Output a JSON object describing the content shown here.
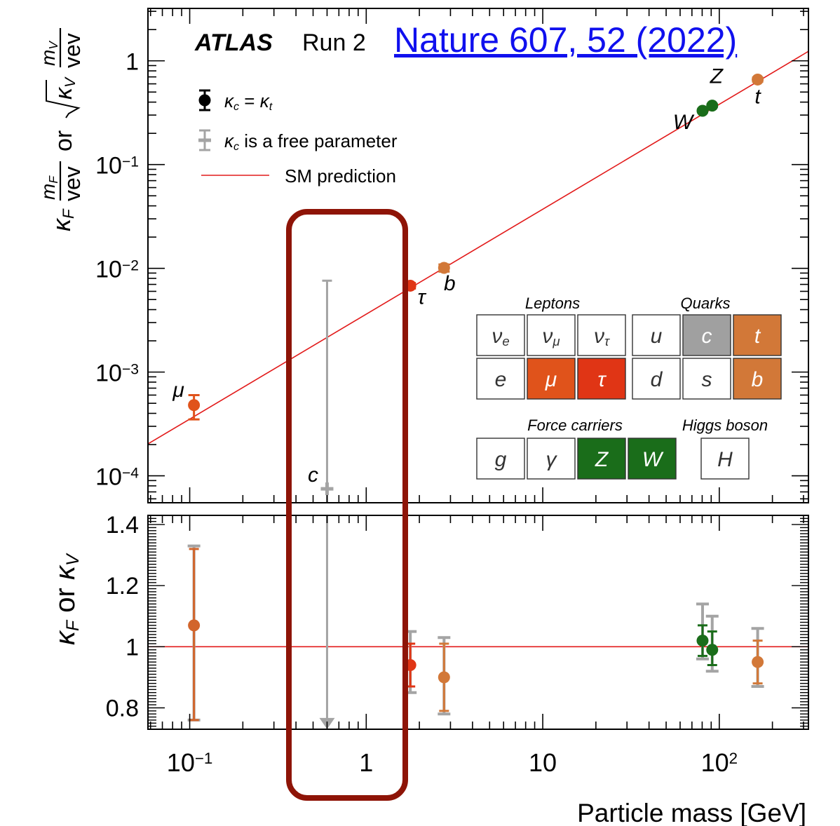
{
  "reference_link": "Nature 607, 52 (2022)",
  "chart_data": {
    "type": "scatter",
    "experiment": "ATLAS",
    "run_label": "Run 2",
    "xlabel": "Particle mass [GeV]",
    "x_scale": "log",
    "xlim": [
      0.058,
      320
    ],
    "x_ticks": [
      {
        "value": 0.1,
        "label": "10",
        "exp": "−1"
      },
      {
        "value": 1,
        "label": "1",
        "exp": ""
      },
      {
        "value": 10,
        "label": "10",
        "exp": ""
      },
      {
        "value": 100,
        "label": "10",
        "exp": "2"
      }
    ],
    "top_panel": {
      "ylabel": {
        "prefix": "κ",
        "sub_f": "F",
        "frac1_num": "m",
        "frac1_num_sub": "F",
        "frac1_den": "vev",
        "or": "or",
        "sqrt_k": "κ",
        "sub_v": "V",
        "frac2_num": "m",
        "frac2_num_sub": "V",
        "frac2_den": "vev"
      },
      "y_scale": "log",
      "ylim": [
        5.5e-05,
        3.2
      ],
      "y_ticks": [
        {
          "value": 0.0001,
          "label": "10",
          "exp": "−4"
        },
        {
          "value": 0.001,
          "label": "10",
          "exp": "−3"
        },
        {
          "value": 0.01,
          "label": "10",
          "exp": "−2"
        },
        {
          "value": 0.1,
          "label": "10",
          "exp": "−1"
        },
        {
          "value": 1,
          "label": "1",
          "exp": ""
        }
      ],
      "points": [
        {
          "particle": "μ",
          "mass": 0.1057,
          "value": 0.00048,
          "err_low": 0.00035,
          "err_high": 0.0006,
          "color": "#e0531b"
        },
        {
          "particle": "τ",
          "mass": 1.777,
          "value": 0.0068,
          "err_low": 0.0064,
          "err_high": 0.0072,
          "color": "#e03515"
        },
        {
          "particle": "b",
          "mass": 2.76,
          "value": 0.0101,
          "err_low": 0.0093,
          "err_high": 0.0109,
          "color": "#d27838"
        },
        {
          "particle": "W",
          "mass": 80.4,
          "value": 0.33,
          "err_low": 0.32,
          "err_high": 0.34,
          "color": "#1a6d1a"
        },
        {
          "particle": "Z",
          "mass": 91.2,
          "value": 0.37,
          "err_low": 0.36,
          "err_high": 0.38,
          "color": "#1a6d1a"
        },
        {
          "particle": "t",
          "mass": 165,
          "value": 0.66,
          "err_low": 0.63,
          "err_high": 0.69,
          "color": "#d27838"
        }
      ],
      "charm_point": {
        "particle": "c",
        "mass": 0.6,
        "value": 7.5e-05,
        "err_high": 0.0076,
        "color": "#a4a4a4"
      },
      "sm_line": {
        "x": [
          0.058,
          320
        ],
        "y": [
          0.000203,
          1.235
        ],
        "color": "#e21a1a"
      }
    },
    "bottom_panel": {
      "ylabel": {
        "k1": "κ",
        "s1": "F",
        "or": "or",
        "k2": "κ",
        "s2": "V"
      },
      "ylim": [
        0.73,
        1.43
      ],
      "y_ticks": [
        0.8,
        1.0,
        1.2,
        1.4
      ],
      "y_tick_labels": [
        "0.8",
        "1",
        "1.2",
        "1.4"
      ],
      "points": [
        {
          "particle": "μ",
          "mass": 0.1057,
          "value": 1.07,
          "err_low": 0.76,
          "err_high": 1.32,
          "gray_low": 0.76,
          "gray_high": 1.33,
          "color": "#d2652c"
        },
        {
          "particle": "τ",
          "mass": 1.777,
          "value": 0.94,
          "err_low": 0.87,
          "err_high": 1.01,
          "gray_low": 0.85,
          "gray_high": 1.05,
          "color": "#e03515"
        },
        {
          "particle": "b",
          "mass": 2.76,
          "value": 0.9,
          "err_low": 0.79,
          "err_high": 1.01,
          "gray_low": 0.78,
          "gray_high": 1.03,
          "color": "#d27838"
        },
        {
          "particle": "W",
          "mass": 80.4,
          "value": 1.02,
          "err_low": 0.97,
          "err_high": 1.07,
          "gray_low": 0.96,
          "gray_high": 1.14,
          "color": "#1a6d1a"
        },
        {
          "particle": "Z",
          "mass": 91.2,
          "value": 0.99,
          "err_low": 0.94,
          "err_high": 1.05,
          "gray_low": 0.92,
          "gray_high": 1.1,
          "color": "#1a6d1a"
        },
        {
          "particle": "t",
          "mass": 165,
          "value": 0.95,
          "err_low": 0.88,
          "err_high": 1.02,
          "gray_low": 0.87,
          "gray_high": 1.06,
          "color": "#d27838"
        }
      ],
      "charm_limit": {
        "particle": "c",
        "mass": 0.6,
        "upper_edge": "off-scale",
        "lower": 0.735,
        "color": "#a4a4a4"
      },
      "sm_value": 1.0
    },
    "legend": {
      "placement": "top-left",
      "entries": [
        {
          "label_k": "κ",
          "label_sub": "c",
          "label_rest": " = ",
          "label_k2": "κ",
          "label_sub2": "t",
          "color": "#000000"
        },
        {
          "label_k": "κ",
          "label_sub": "c",
          "label_rest": " is a free parameter",
          "color": "#a4a4a4"
        },
        {
          "label": "SM prediction",
          "color": "#e21a1a"
        }
      ]
    },
    "particle_table": {
      "headers": {
        "leptons": "Leptons",
        "quarks": "Quarks",
        "force": "Force carriers",
        "higgs": "Higgs boson"
      },
      "leptons": [
        {
          "main": "ν",
          "sub": "e",
          "fill": "#ffffff",
          "text": "#333333"
        },
        {
          "main": "ν",
          "sub": "μ",
          "fill": "#ffffff",
          "text": "#333333"
        },
        {
          "main": "ν",
          "sub": "τ",
          "fill": "#ffffff",
          "text": "#333333"
        },
        {
          "main": "e",
          "sub": "",
          "fill": "#ffffff",
          "text": "#333333"
        },
        {
          "main": "μ",
          "sub": "",
          "fill": "#e0531b",
          "text": "#ffffff"
        },
        {
          "main": "τ",
          "sub": "",
          "fill": "#e03515",
          "text": "#ffffff"
        }
      ],
      "quarks": [
        {
          "main": "u",
          "sub": "",
          "fill": "#ffffff",
          "text": "#333333"
        },
        {
          "main": "c",
          "sub": "",
          "fill": "#a0a0a0",
          "text": "#ffffff"
        },
        {
          "main": "t",
          "sub": "",
          "fill": "#d27838",
          "text": "#ffffff"
        },
        {
          "main": "d",
          "sub": "",
          "fill": "#ffffff",
          "text": "#333333"
        },
        {
          "main": "s",
          "sub": "",
          "fill": "#ffffff",
          "text": "#333333"
        },
        {
          "main": "b",
          "sub": "",
          "fill": "#d27838",
          "text": "#ffffff"
        }
      ],
      "force": [
        {
          "main": "g",
          "sub": "",
          "fill": "#ffffff",
          "text": "#333333"
        },
        {
          "main": "γ",
          "sub": "",
          "fill": "#ffffff",
          "text": "#333333"
        },
        {
          "main": "Z",
          "sub": "",
          "fill": "#1a6d1a",
          "text": "#ffffff"
        },
        {
          "main": "W",
          "sub": "",
          "fill": "#1a6d1a",
          "text": "#ffffff"
        }
      ],
      "higgs": [
        {
          "main": "H",
          "sub": "",
          "fill": "#ffffff",
          "text": "#333333"
        }
      ]
    },
    "highlight_box_color": "#8e1407"
  }
}
